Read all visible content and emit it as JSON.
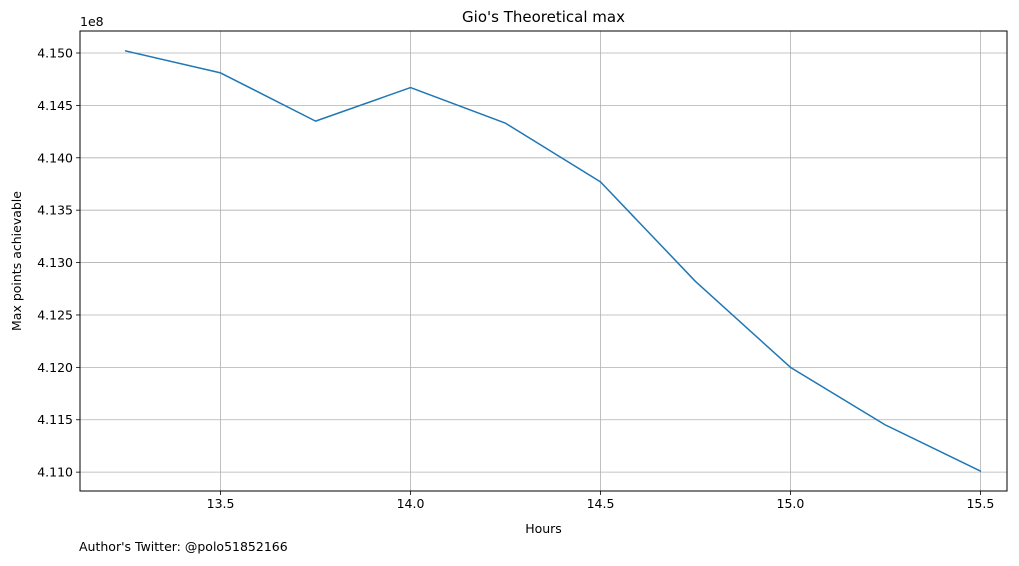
{
  "chart_data": {
    "type": "line",
    "title": "Gio's Theoretical max",
    "xlabel": "Hours",
    "ylabel": "Max points achievable",
    "y_offset_label": "1e8",
    "y_scale": 100000000,
    "xlim": [
      13.13,
      15.57
    ],
    "ylim": [
      4.1082,
      4.1521
    ],
    "x_ticks": [
      13.5,
      14.0,
      14.5,
      15.0,
      15.5
    ],
    "x_tick_labels": [
      "13.5",
      "14.0",
      "14.5",
      "15.0",
      "15.5"
    ],
    "y_ticks": [
      4.11,
      4.115,
      4.12,
      4.125,
      4.13,
      4.135,
      4.14,
      4.145,
      4.15
    ],
    "y_tick_labels": [
      "4.110",
      "4.115",
      "4.120",
      "4.125",
      "4.130",
      "4.135",
      "4.140",
      "4.145",
      "4.150"
    ],
    "grid": true,
    "series": [
      {
        "color": "#1f77b4",
        "x": [
          13.25,
          13.5,
          13.75,
          14.0,
          14.25,
          14.5,
          14.75,
          15.0,
          15.25,
          15.5
        ],
        "y": [
          4.1502,
          4.1481,
          4.1435,
          4.1467,
          4.1433,
          4.1377,
          4.1282,
          4.12,
          4.1145,
          4.1101
        ]
      }
    ]
  },
  "footer": {
    "credit": "Author's Twitter: @polo51852166"
  }
}
